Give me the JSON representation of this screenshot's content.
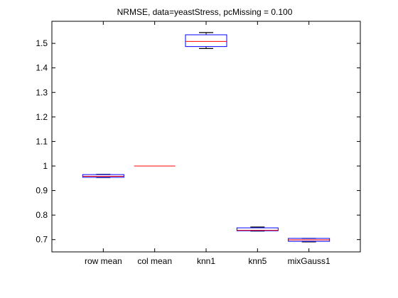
{
  "chart_data": {
    "type": "box",
    "title": "NRMSE, data=yeastStress, pcMissing = 0.100",
    "xlabel": "",
    "ylabel": "",
    "categories": [
      "row mean",
      "col mean",
      "knn1",
      "knn5",
      "mixGauss1"
    ],
    "ylim": [
      0.65,
      1.59
    ],
    "yticks": [
      "0.7",
      "0.8",
      "0.9",
      "1",
      "1.1",
      "1.2",
      "1.3",
      "1.4",
      "1.5"
    ],
    "ytick_values": [
      0.7,
      0.8,
      0.9,
      1.0,
      1.1,
      1.2,
      1.3,
      1.4,
      1.5
    ],
    "grid": false,
    "box_color": "#0000ff",
    "median_color": "#ff0000",
    "whisker_color": "#000000",
    "boxes": [
      {
        "category": "row mean",
        "min": 0.953,
        "q1": 0.954,
        "median": 0.958,
        "q3": 0.965,
        "max": 0.966
      },
      {
        "category": "col mean",
        "min": 1.0,
        "q1": 1.0,
        "median": 1.0,
        "q3": 1.0,
        "max": 1.0
      },
      {
        "category": "knn1",
        "min": 1.479,
        "q1": 1.487,
        "median": 1.508,
        "q3": 1.535,
        "max": 1.544
      },
      {
        "category": "knn5",
        "min": 0.735,
        "q1": 0.736,
        "median": 0.738,
        "q3": 0.748,
        "max": 0.751
      },
      {
        "category": "mixGauss1",
        "min": 0.691,
        "q1": 0.693,
        "median": 0.699,
        "q3": 0.705,
        "max": 0.705
      }
    ]
  }
}
